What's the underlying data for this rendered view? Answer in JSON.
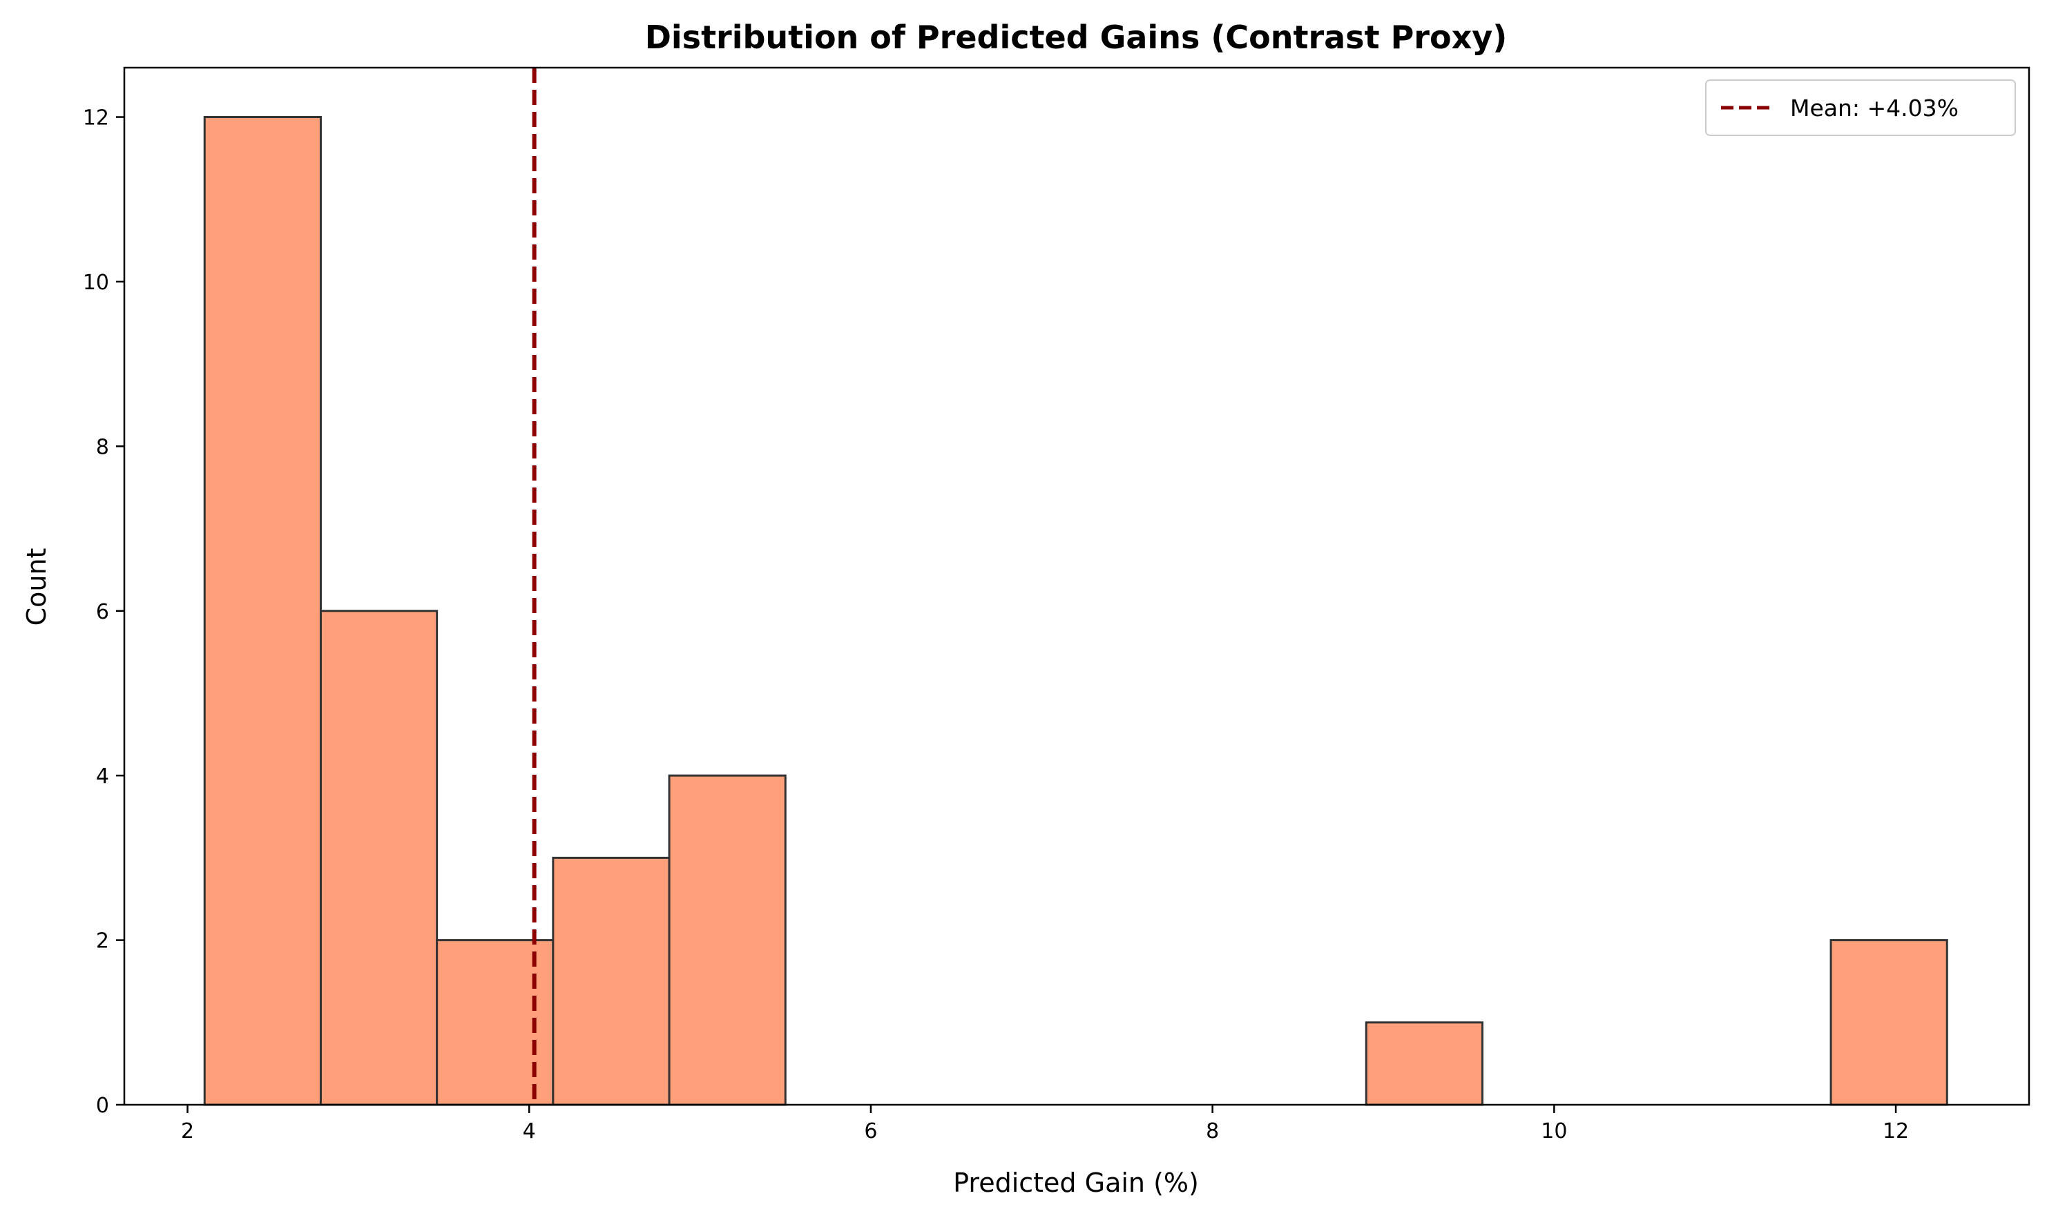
{
  "chart_data": {
    "type": "bar",
    "subtype": "histogram",
    "title": "Distribution of Predicted Gains (Contrast Proxy)",
    "xlabel": "Predicted Gain (%)",
    "ylabel": "Count",
    "xlim": [
      1.63,
      12.78
    ],
    "ylim": [
      0,
      12.6
    ],
    "xticks": [
      2,
      4,
      6,
      8,
      10,
      12
    ],
    "yticks": [
      0,
      2,
      4,
      6,
      8,
      10,
      12
    ],
    "bins": [
      {
        "x0": 2.1,
        "x1": 2.78,
        "count": 12
      },
      {
        "x0": 2.78,
        "x1": 3.46,
        "count": 6
      },
      {
        "x0": 3.46,
        "x1": 4.14,
        "count": 2
      },
      {
        "x0": 4.14,
        "x1": 4.82,
        "count": 3
      },
      {
        "x0": 4.82,
        "x1": 5.5,
        "count": 4
      },
      {
        "x0": 5.5,
        "x1": 6.18,
        "count": 0
      },
      {
        "x0": 6.18,
        "x1": 6.86,
        "count": 0
      },
      {
        "x0": 6.86,
        "x1": 7.54,
        "count": 0
      },
      {
        "x0": 7.54,
        "x1": 8.22,
        "count": 0
      },
      {
        "x0": 8.22,
        "x1": 8.9,
        "count": 0
      },
      {
        "x0": 8.9,
        "x1": 9.58,
        "count": 1
      },
      {
        "x0": 9.58,
        "x1": 10.26,
        "count": 0
      },
      {
        "x0": 10.26,
        "x1": 10.94,
        "count": 0
      },
      {
        "x0": 10.94,
        "x1": 11.62,
        "count": 0
      },
      {
        "x0": 11.62,
        "x1": 12.3,
        "count": 2
      }
    ],
    "mean_line": {
      "x": 4.03,
      "label": "Mean: +4.03%"
    },
    "legend": {
      "placement": "top-right",
      "entries": [
        "Mean: +4.03%"
      ]
    },
    "grid": false,
    "colors": {
      "bar_fill": "#FFA07A",
      "bar_edge": "#333333",
      "mean_line": "#8B0000"
    }
  }
}
